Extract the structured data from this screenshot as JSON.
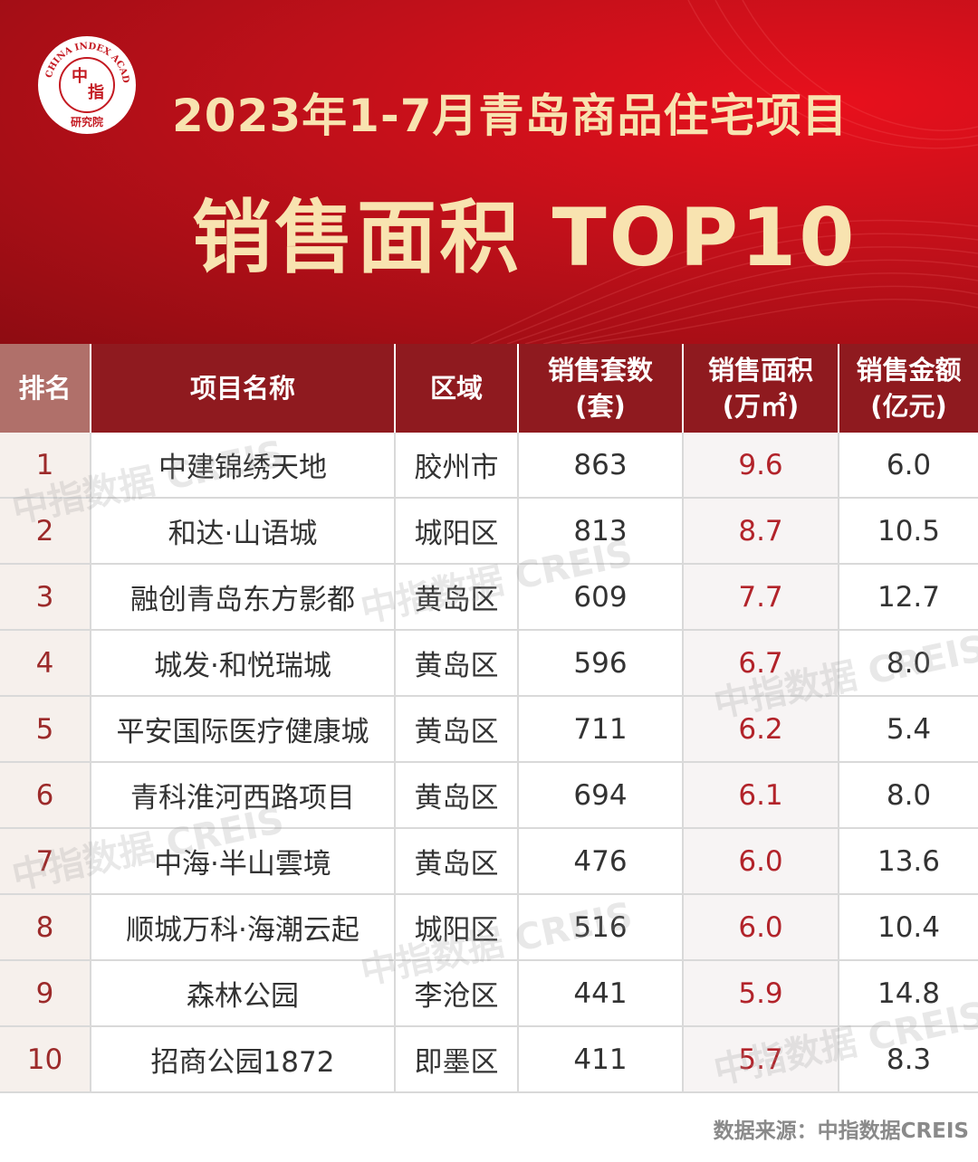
{
  "header": {
    "logo_text_top": "CHINA INDEX ACADEMY",
    "logo_char_1": "中",
    "logo_char_2": "指",
    "logo_text_bottom": "研究院",
    "title_line1": "2023年1-7月青岛商品住宅项目",
    "title_line2": "销售面积 TOP10"
  },
  "chart_data": {
    "type": "table",
    "columns": [
      "排名",
      "项目名称",
      "区域",
      "销售套数\n(套)",
      "销售面积\n(万㎡)",
      "销售金额\n(亿元)"
    ],
    "rows": [
      {
        "rank": "1",
        "name": "中建锦绣天地",
        "district": "胶州市",
        "units": "863",
        "area": "9.6",
        "amount": "6.0"
      },
      {
        "rank": "2",
        "name": "和达·山语城",
        "district": "城阳区",
        "units": "813",
        "area": "8.7",
        "amount": "10.5"
      },
      {
        "rank": "3",
        "name": "融创青岛东方影都",
        "district": "黄岛区",
        "units": "609",
        "area": "7.7",
        "amount": "12.7"
      },
      {
        "rank": "4",
        "name": "城发·和悦瑞城",
        "district": "黄岛区",
        "units": "596",
        "area": "6.7",
        "amount": "8.0"
      },
      {
        "rank": "5",
        "name": "平安国际医疗健康城",
        "district": "黄岛区",
        "units": "711",
        "area": "6.2",
        "amount": "5.4"
      },
      {
        "rank": "6",
        "name": "青科淮河西路项目",
        "district": "黄岛区",
        "units": "694",
        "area": "6.1",
        "amount": "8.0"
      },
      {
        "rank": "7",
        "name": "中海·半山雲境",
        "district": "黄岛区",
        "units": "476",
        "area": "6.0",
        "amount": "13.6"
      },
      {
        "rank": "8",
        "name": "顺城万科·海潮云起",
        "district": "城阳区",
        "units": "516",
        "area": "6.0",
        "amount": "10.4"
      },
      {
        "rank": "9",
        "name": "森林公园",
        "district": "李沧区",
        "units": "441",
        "area": "5.9",
        "amount": "14.8"
      },
      {
        "rank": "10",
        "name": "招商公园1872",
        "district": "即墨区",
        "units": "411",
        "area": "5.7",
        "amount": "8.3"
      }
    ]
  },
  "watermark": "中指数据 CREIS",
  "source": "数据来源：中指数据CREIS",
  "colors": {
    "banner_red": "#c0101a",
    "header_dark_red": "#8f1a1f",
    "header_rank_bg": "#b0706a",
    "title_gold": "#f8e3b0",
    "area_text_red": "#b2232a"
  }
}
